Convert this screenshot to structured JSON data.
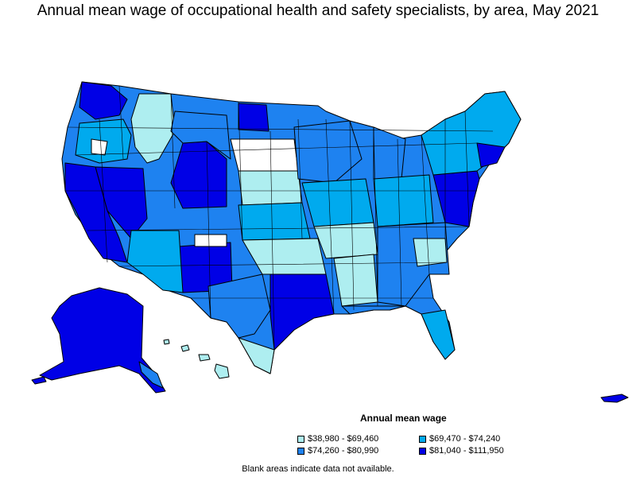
{
  "title": "Annual mean wage of occupational health and safety specialists, by area, May 2021",
  "legend": {
    "title": "Annual mean wage",
    "items": [
      {
        "label": "$38,980 - $69,460",
        "color": "#aeeef0"
      },
      {
        "label": "$69,470 - $74,240",
        "color": "#00aaee"
      },
      {
        "label": "$74,260 - $80,990",
        "color": "#1e82f0"
      },
      {
        "label": "$81,040 - $111,950",
        "color": "#0000e6"
      }
    ]
  },
  "note": "Blank areas indicate data not available.",
  "colors": {
    "tier1": "#aeeef0",
    "tier2": "#00aaee",
    "tier3": "#1e82f0",
    "tier4": "#0000e6",
    "blank": "#ffffff",
    "border": "#000000"
  }
}
